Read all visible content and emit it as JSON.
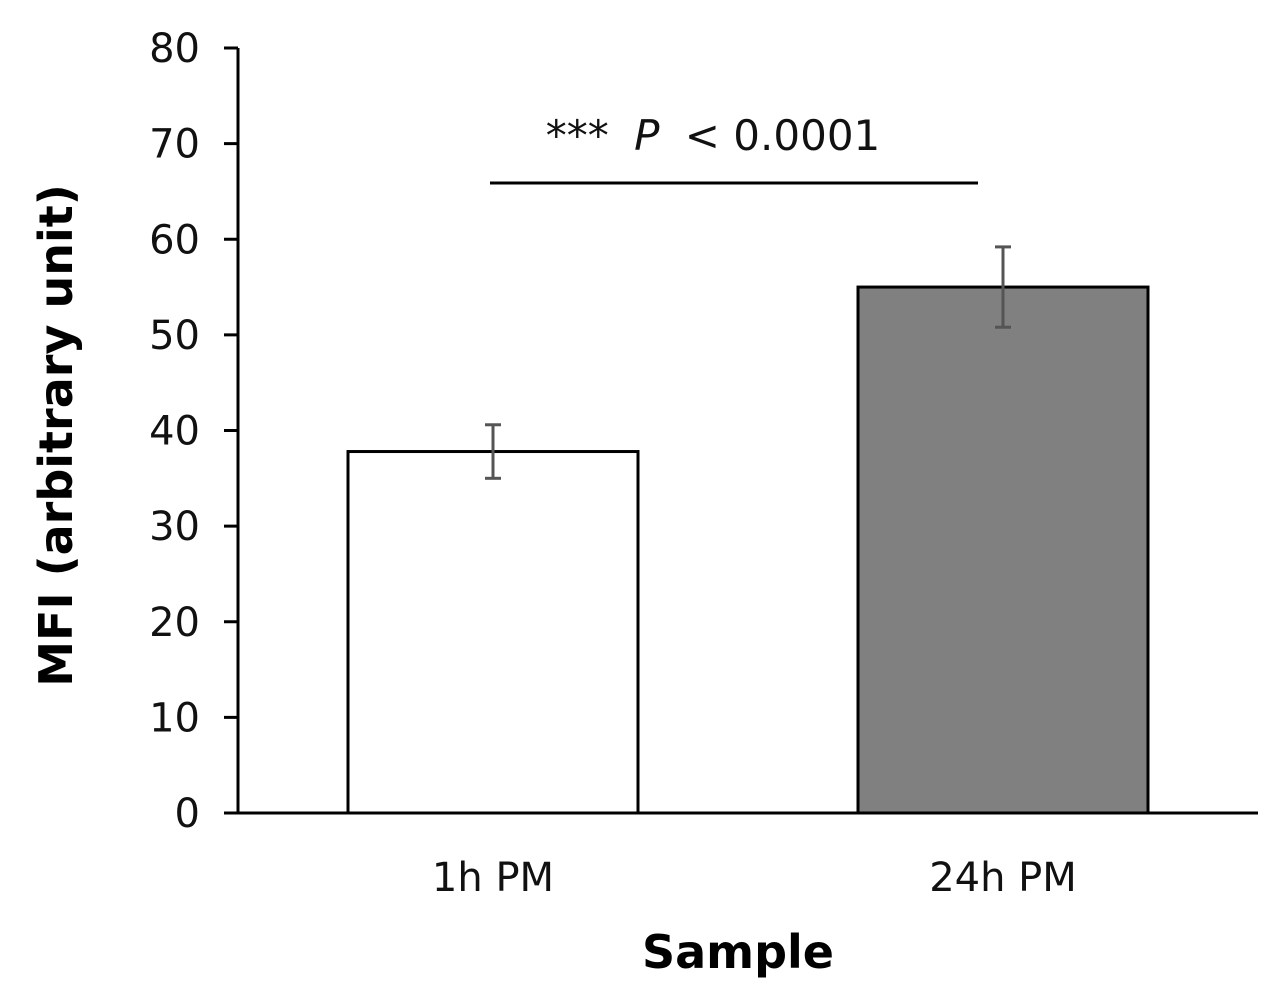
{
  "chart_data": {
    "type": "bar",
    "title": "",
    "xlabel": "Sample",
    "ylabel": "MFI (arbitrary unit)",
    "ylim": [
      0,
      80
    ],
    "yticks": [
      0,
      10,
      20,
      30,
      40,
      50,
      60,
      70,
      80
    ],
    "grid": false,
    "categories": [
      "1h PM",
      "24h PM"
    ],
    "values": [
      37.8,
      55.0
    ],
    "error_bars": [
      2.8,
      4.2
    ],
    "bar_colors": [
      "#ffffff",
      "#808080"
    ],
    "annotation": {
      "prefix": "***",
      "p_symbol": "P",
      "comparison": "< 0.0001"
    }
  }
}
